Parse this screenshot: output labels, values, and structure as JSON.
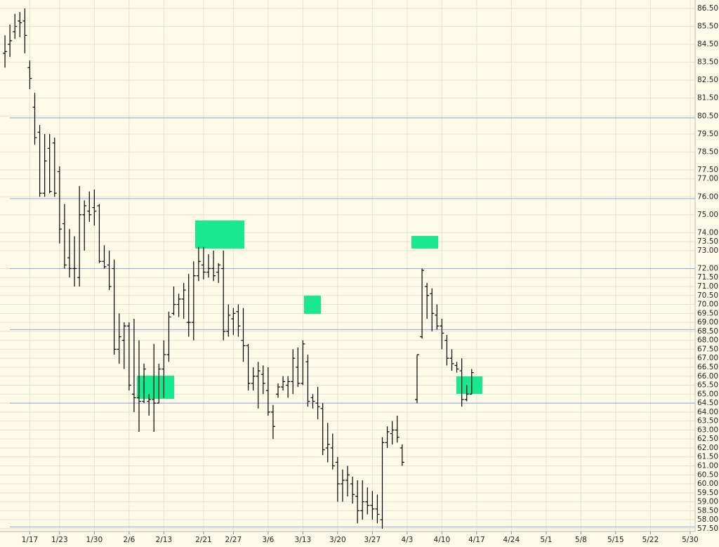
{
  "chart_data": {
    "type": "ohlc",
    "color": "#000000",
    "grid": true,
    "reference_color": "#8aa6e6",
    "reference_lines": [
      80.4,
      75.9,
      72.0,
      68.6,
      64.5,
      57.6
    ],
    "xlim": [
      -6,
      134
    ],
    "ylim": [
      57.34,
      86.97
    ],
    "xticks": [
      {
        "value": 0,
        "label": "1/17"
      },
      {
        "value": 6,
        "label": "1/23"
      },
      {
        "value": 13,
        "label": "1/30"
      },
      {
        "value": 20,
        "label": "2/6"
      },
      {
        "value": 27,
        "label": "2/13"
      },
      {
        "value": 35,
        "label": "2/21"
      },
      {
        "value": 41,
        "label": "2/27"
      },
      {
        "value": 48,
        "label": "3/6"
      },
      {
        "value": 55,
        "label": "3/13"
      },
      {
        "value": 62,
        "label": "3/20"
      },
      {
        "value": 69,
        "label": "3/27"
      },
      {
        "value": 76,
        "label": "4/3"
      },
      {
        "value": 83,
        "label": "4/10"
      },
      {
        "value": 90,
        "label": "4/17"
      },
      {
        "value": 97,
        "label": "4/24"
      },
      {
        "value": 104,
        "label": "5/1"
      },
      {
        "value": 111,
        "label": "5/8"
      },
      {
        "value": 118,
        "label": "5/15"
      },
      {
        "value": 125,
        "label": "5/22"
      },
      {
        "value": 133,
        "label": "5/30"
      }
    ],
    "yticks": [
      {
        "value": 86.5,
        "label": "86.50"
      },
      {
        "value": 85.5,
        "label": "85.50"
      },
      {
        "value": 84.5,
        "label": "84.50"
      },
      {
        "value": 83.5,
        "label": "83.50"
      },
      {
        "value": 82.5,
        "label": "82.50"
      },
      {
        "value": 81.5,
        "label": "81.50"
      },
      {
        "value": 80.5,
        "label": "80.50"
      },
      {
        "value": 79.5,
        "label": "79.50"
      },
      {
        "value": 78.5,
        "label": "78.50"
      },
      {
        "value": 77.5,
        "label": "77.50"
      },
      {
        "value": 77,
        "label": "77.00"
      },
      {
        "value": 76,
        "label": "76.00"
      },
      {
        "value": 75,
        "label": "75.00"
      },
      {
        "value": 74,
        "label": "74.00"
      },
      {
        "value": 73.5,
        "label": "73.50"
      },
      {
        "value": 73,
        "label": "73.00"
      },
      {
        "value": 72,
        "label": "72.00"
      },
      {
        "value": 71.5,
        "label": "71.50"
      },
      {
        "value": 71,
        "label": "71.00"
      },
      {
        "value": 70.5,
        "label": "70.50"
      },
      {
        "value": 70,
        "label": "70.00"
      },
      {
        "value": 69.5,
        "label": "69.50"
      },
      {
        "value": 69,
        "label": "69.00"
      },
      {
        "value": 68.5,
        "label": "68.50"
      },
      {
        "value": 68,
        "label": "68.00"
      },
      {
        "value": 67.5,
        "label": "67.50"
      },
      {
        "value": 67,
        "label": "67.00"
      },
      {
        "value": 66.5,
        "label": "66.50"
      },
      {
        "value": 66,
        "label": "66.00"
      },
      {
        "value": 65.5,
        "label": "65.50"
      },
      {
        "value": 65,
        "label": "65.00"
      },
      {
        "value": 64.5,
        "label": "64.50"
      },
      {
        "value": 64,
        "label": "64.00"
      },
      {
        "value": 63.5,
        "label": "63.50"
      },
      {
        "value": 63,
        "label": "63.00"
      },
      {
        "value": 62.5,
        "label": "62.50"
      },
      {
        "value": 62,
        "label": "62.00"
      },
      {
        "value": 61.5,
        "label": "61.50"
      },
      {
        "value": 61,
        "label": "61.00"
      },
      {
        "value": 60.5,
        "label": "60.50"
      },
      {
        "value": 60,
        "label": "60.00"
      },
      {
        "value": 59.5,
        "label": "59.50"
      },
      {
        "value": 59,
        "label": "59.00"
      },
      {
        "value": 58.5,
        "label": "58.50"
      },
      {
        "value": 58,
        "label": "58.00"
      },
      {
        "value": 57.5,
        "label": "57.50"
      }
    ],
    "x": [
      -5,
      -4,
      -3,
      -2,
      -1,
      0,
      1,
      2,
      3,
      4,
      5,
      6,
      7,
      8,
      9,
      10,
      11,
      12,
      13,
      14,
      15,
      16,
      17,
      18,
      19,
      20,
      21,
      22,
      23,
      24,
      25,
      26,
      27,
      28,
      29,
      30,
      31,
      32,
      33,
      34,
      35,
      36,
      37,
      38,
      39,
      40,
      41,
      42,
      43,
      44,
      45,
      46,
      47,
      48,
      49,
      50,
      51,
      52,
      53,
      54,
      55,
      56,
      57,
      58,
      59,
      60,
      61,
      62,
      63,
      64,
      65,
      66,
      67,
      68,
      69,
      70,
      71,
      72,
      73,
      74,
      75,
      78,
      79,
      80,
      81,
      82,
      83,
      84,
      85,
      86,
      87,
      88,
      89
    ],
    "open": [
      84.0,
      84.5,
      85.2,
      85.8,
      85.8,
      83.2,
      81.0,
      79.6,
      76.2,
      78.7,
      79.0,
      77.4,
      74.5,
      72.6,
      72.0,
      71.5,
      75.0,
      75.2,
      75.4,
      75.5,
      72.4,
      72.2,
      72.0,
      67.5,
      68.0,
      68.8,
      65.0,
      64.8,
      64.6,
      64.6,
      64.7,
      64.5,
      66.4,
      67.2,
      69.5,
      70.0,
      70.3,
      69.0,
      69.0,
      71.6,
      72.2,
      71.8,
      72.0,
      71.8,
      72.0,
      68.5,
      69.2,
      69.6,
      68.0,
      67.7,
      65.6,
      66.0,
      66.1,
      65.2,
      64.0,
      65.0,
      65.4,
      65.5,
      65.7,
      66.5,
      65.6,
      66.8,
      64.8,
      64.5,
      64.2,
      62.0,
      62.0,
      61.2,
      60.0,
      60.2,
      60.0,
      59.3,
      58.5,
      59.0,
      58.8,
      58.6,
      58.0,
      62.3,
      62.8,
      63.0,
      62.0,
      64.7,
      68.2,
      71.0,
      70.6,
      69.4,
      68.8,
      68.0,
      67.0,
      66.6,
      66.3,
      64.7,
      65.0
    ],
    "high": [
      85.0,
      85.6,
      86.2,
      86.3,
      86.5,
      83.6,
      81.8,
      80.0,
      79.5,
      79.5,
      79.3,
      77.7,
      75.6,
      74.2,
      73.8,
      76.6,
      75.8,
      76.3,
      76.4,
      75.6,
      73.3,
      73.0,
      72.5,
      69.5,
      69.0,
      69.0,
      69.2,
      68.0,
      66.7,
      65.0,
      67.8,
      66.7,
      68.0,
      69.6,
      71.0,
      70.6,
      71.2,
      71.7,
      72.4,
      73.2,
      73.2,
      72.8,
      73.0,
      72.3,
      73.0,
      70.0,
      69.8,
      70.0,
      69.8,
      67.8,
      66.5,
      66.8,
      66.6,
      66.5,
      64.4,
      65.6,
      66.0,
      66.0,
      67.5,
      67.6,
      68.0,
      67.2,
      65.0,
      65.4,
      64.5,
      63.4,
      62.8,
      61.5,
      60.8,
      61.0,
      60.4,
      60.2,
      60.2,
      59.8,
      59.6,
      59.4,
      62.6,
      63.2,
      63.5,
      63.8,
      62.2,
      67.2,
      72.0,
      71.2,
      70.9,
      70.0,
      69.2,
      68.3,
      67.5,
      66.8,
      67.0,
      65.5,
      66.4
    ],
    "low": [
      83.2,
      83.8,
      84.8,
      84.9,
      84.0,
      82.0,
      78.9,
      76.0,
      76.0,
      76.2,
      76.0,
      73.4,
      72.0,
      71.5,
      71.0,
      71.0,
      73.0,
      74.6,
      74.4,
      72.3,
      72.0,
      70.8,
      67.2,
      66.7,
      66.4,
      65.2,
      64.0,
      62.9,
      64.5,
      63.8,
      62.9,
      64.5,
      64.8,
      66.8,
      69.4,
      69.3,
      69.2,
      68.2,
      68.0,
      71.3,
      71.4,
      71.5,
      71.3,
      71.2,
      68.0,
      68.2,
      68.3,
      68.2,
      66.8,
      65.2,
      65.2,
      64.2,
      65.0,
      63.8,
      62.5,
      64.8,
      65.2,
      64.8,
      65.0,
      65.4,
      65.5,
      64.3,
      64.2,
      63.6,
      61.6,
      61.2,
      60.8,
      59.0,
      59.0,
      59.3,
      58.9,
      57.8,
      58.0,
      58.3,
      58.0,
      57.8,
      57.5,
      62.0,
      62.2,
      62.3,
      61.0,
      64.5,
      68.1,
      69.2,
      68.5,
      68.6,
      67.5,
      66.6,
      66.3,
      66.2,
      64.3,
      64.6,
      65.0
    ],
    "close": [
      84.1,
      84.7,
      85.5,
      85.7,
      85.0,
      82.6,
      79.3,
      76.2,
      78.0,
      76.3,
      76.2,
      74.2,
      72.2,
      72.0,
      72.0,
      75.0,
      75.5,
      75.0,
      75.2,
      72.4,
      72.1,
      71.0,
      67.5,
      68.2,
      68.8,
      65.5,
      64.8,
      64.6,
      66.4,
      64.7,
      64.5,
      66.4,
      67.2,
      69.3,
      70.0,
      70.3,
      70.8,
      69.0,
      71.6,
      72.4,
      71.8,
      72.0,
      71.6,
      72.2,
      68.5,
      69.4,
      69.5,
      68.8,
      67.7,
      65.6,
      66.0,
      66.3,
      65.6,
      64.0,
      63.2,
      65.4,
      65.7,
      65.7,
      67.0,
      65.6,
      67.8,
      64.6,
      64.6,
      64.3,
      61.9,
      62.2,
      61.0,
      60.0,
      60.2,
      60.5,
      59.4,
      58.5,
      59.0,
      58.8,
      58.6,
      58.3,
      62.3,
      62.9,
      63.0,
      62.6,
      61.2,
      67.2,
      71.9,
      70.5,
      69.5,
      68.8,
      68.4,
      67.0,
      66.7,
      66.4,
      64.7,
      65.0,
      66.2
    ]
  }
}
